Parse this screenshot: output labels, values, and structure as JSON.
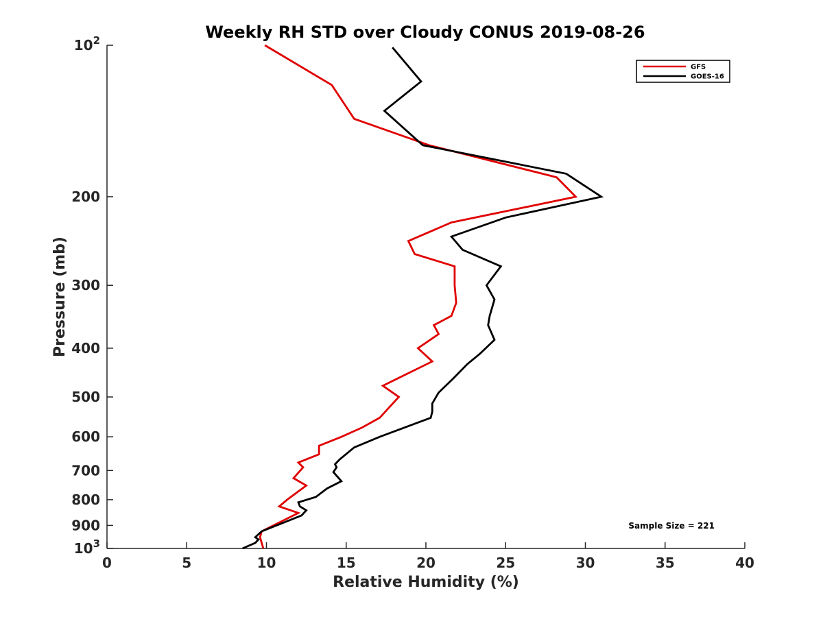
{
  "chart_data": {
    "type": "line",
    "title": "Weekly RH STD over Cloudy CONUS 2019-08-26",
    "xlabel": "Relative Humidity (%)",
    "ylabel": "Pressure (mb)",
    "xlim": [
      0,
      40
    ],
    "ylim": [
      100,
      1000
    ],
    "y_scale": "log",
    "y_reversed": true,
    "x_ticks": [
      0,
      5,
      10,
      15,
      20,
      25,
      30,
      35,
      40
    ],
    "x_tick_labels": [
      "0",
      "5",
      "10",
      "15",
      "20",
      "25",
      "30",
      "35",
      "40"
    ],
    "y_ticks": [
      100,
      200,
      300,
      400,
      500,
      600,
      700,
      800,
      900,
      1000
    ],
    "y_tick_labels": [
      {
        "base": "10",
        "exp": "2"
      },
      {
        "base": "200",
        "exp": ""
      },
      {
        "base": "300",
        "exp": ""
      },
      {
        "base": "400",
        "exp": ""
      },
      {
        "base": "500",
        "exp": ""
      },
      {
        "base": "600",
        "exp": ""
      },
      {
        "base": "700",
        "exp": ""
      },
      {
        "base": "800",
        "exp": ""
      },
      {
        "base": "900",
        "exp": ""
      },
      {
        "base": "10",
        "exp": "3"
      }
    ],
    "grid": false,
    "legend_position": "top-right",
    "annotation": "Sample Size = 221",
    "series": [
      {
        "name": "GFS",
        "color": "#e00000",
        "points": [
          {
            "x": 9.8,
            "y": 1000
          },
          {
            "x": 9.7,
            "y": 975
          },
          {
            "x": 9.6,
            "y": 950
          },
          {
            "x": 9.7,
            "y": 925
          },
          {
            "x": 12.0,
            "y": 850
          },
          {
            "x": 10.8,
            "y": 825
          },
          {
            "x": 11.3,
            "y": 800
          },
          {
            "x": 12.5,
            "y": 750
          },
          {
            "x": 11.7,
            "y": 725
          },
          {
            "x": 12.3,
            "y": 690
          },
          {
            "x": 12.0,
            "y": 675
          },
          {
            "x": 13.3,
            "y": 650
          },
          {
            "x": 13.3,
            "y": 625
          },
          {
            "x": 14.7,
            "y": 600
          },
          {
            "x": 16.0,
            "y": 575
          },
          {
            "x": 17.1,
            "y": 550
          },
          {
            "x": 18.3,
            "y": 500
          },
          {
            "x": 17.3,
            "y": 475
          },
          {
            "x": 18.8,
            "y": 450
          },
          {
            "x": 20.4,
            "y": 425
          },
          {
            "x": 19.5,
            "y": 400
          },
          {
            "x": 20.8,
            "y": 375
          },
          {
            "x": 20.5,
            "y": 360
          },
          {
            "x": 21.6,
            "y": 345
          },
          {
            "x": 21.9,
            "y": 325
          },
          {
            "x": 21.8,
            "y": 300
          },
          {
            "x": 21.8,
            "y": 275
          },
          {
            "x": 19.3,
            "y": 260
          },
          {
            "x": 18.9,
            "y": 245
          },
          {
            "x": 21.6,
            "y": 225
          },
          {
            "x": 29.4,
            "y": 200
          },
          {
            "x": 28.2,
            "y": 183
          },
          {
            "x": 20.2,
            "y": 158
          },
          {
            "x": 15.5,
            "y": 140
          },
          {
            "x": 14.1,
            "y": 120
          },
          {
            "x": 9.9,
            "y": 100
          }
        ]
      },
      {
        "name": "GOES-16",
        "color": "#000000",
        "points": [
          {
            "x": 8.5,
            "y": 1000
          },
          {
            "x": 9.3,
            "y": 975
          },
          {
            "x": 9.5,
            "y": 960
          },
          {
            "x": 9.3,
            "y": 950
          },
          {
            "x": 9.7,
            "y": 925
          },
          {
            "x": 12.2,
            "y": 860
          },
          {
            "x": 12.5,
            "y": 840
          },
          {
            "x": 12.1,
            "y": 825
          },
          {
            "x": 12.0,
            "y": 810
          },
          {
            "x": 13.1,
            "y": 790
          },
          {
            "x": 13.8,
            "y": 760
          },
          {
            "x": 14.7,
            "y": 735
          },
          {
            "x": 14.2,
            "y": 705
          },
          {
            "x": 14.4,
            "y": 690
          },
          {
            "x": 14.3,
            "y": 680
          },
          {
            "x": 14.6,
            "y": 665
          },
          {
            "x": 15.5,
            "y": 630
          },
          {
            "x": 17.1,
            "y": 600
          },
          {
            "x": 20.3,
            "y": 550
          },
          {
            "x": 20.4,
            "y": 535
          },
          {
            "x": 20.4,
            "y": 515
          },
          {
            "x": 20.8,
            "y": 490
          },
          {
            "x": 21.7,
            "y": 460
          },
          {
            "x": 22.6,
            "y": 430
          },
          {
            "x": 23.4,
            "y": 410
          },
          {
            "x": 24.3,
            "y": 385
          },
          {
            "x": 23.9,
            "y": 360
          },
          {
            "x": 24.0,
            "y": 345
          },
          {
            "x": 24.3,
            "y": 320
          },
          {
            "x": 23.8,
            "y": 300
          },
          {
            "x": 24.7,
            "y": 275
          },
          {
            "x": 22.3,
            "y": 255
          },
          {
            "x": 21.6,
            "y": 240
          },
          {
            "x": 25.0,
            "y": 220
          },
          {
            "x": 31.0,
            "y": 200
          },
          {
            "x": 28.8,
            "y": 180
          },
          {
            "x": 19.8,
            "y": 158
          },
          {
            "x": 17.4,
            "y": 135
          },
          {
            "x": 19.7,
            "y": 118
          },
          {
            "x": 17.9,
            "y": 101
          }
        ]
      }
    ]
  }
}
